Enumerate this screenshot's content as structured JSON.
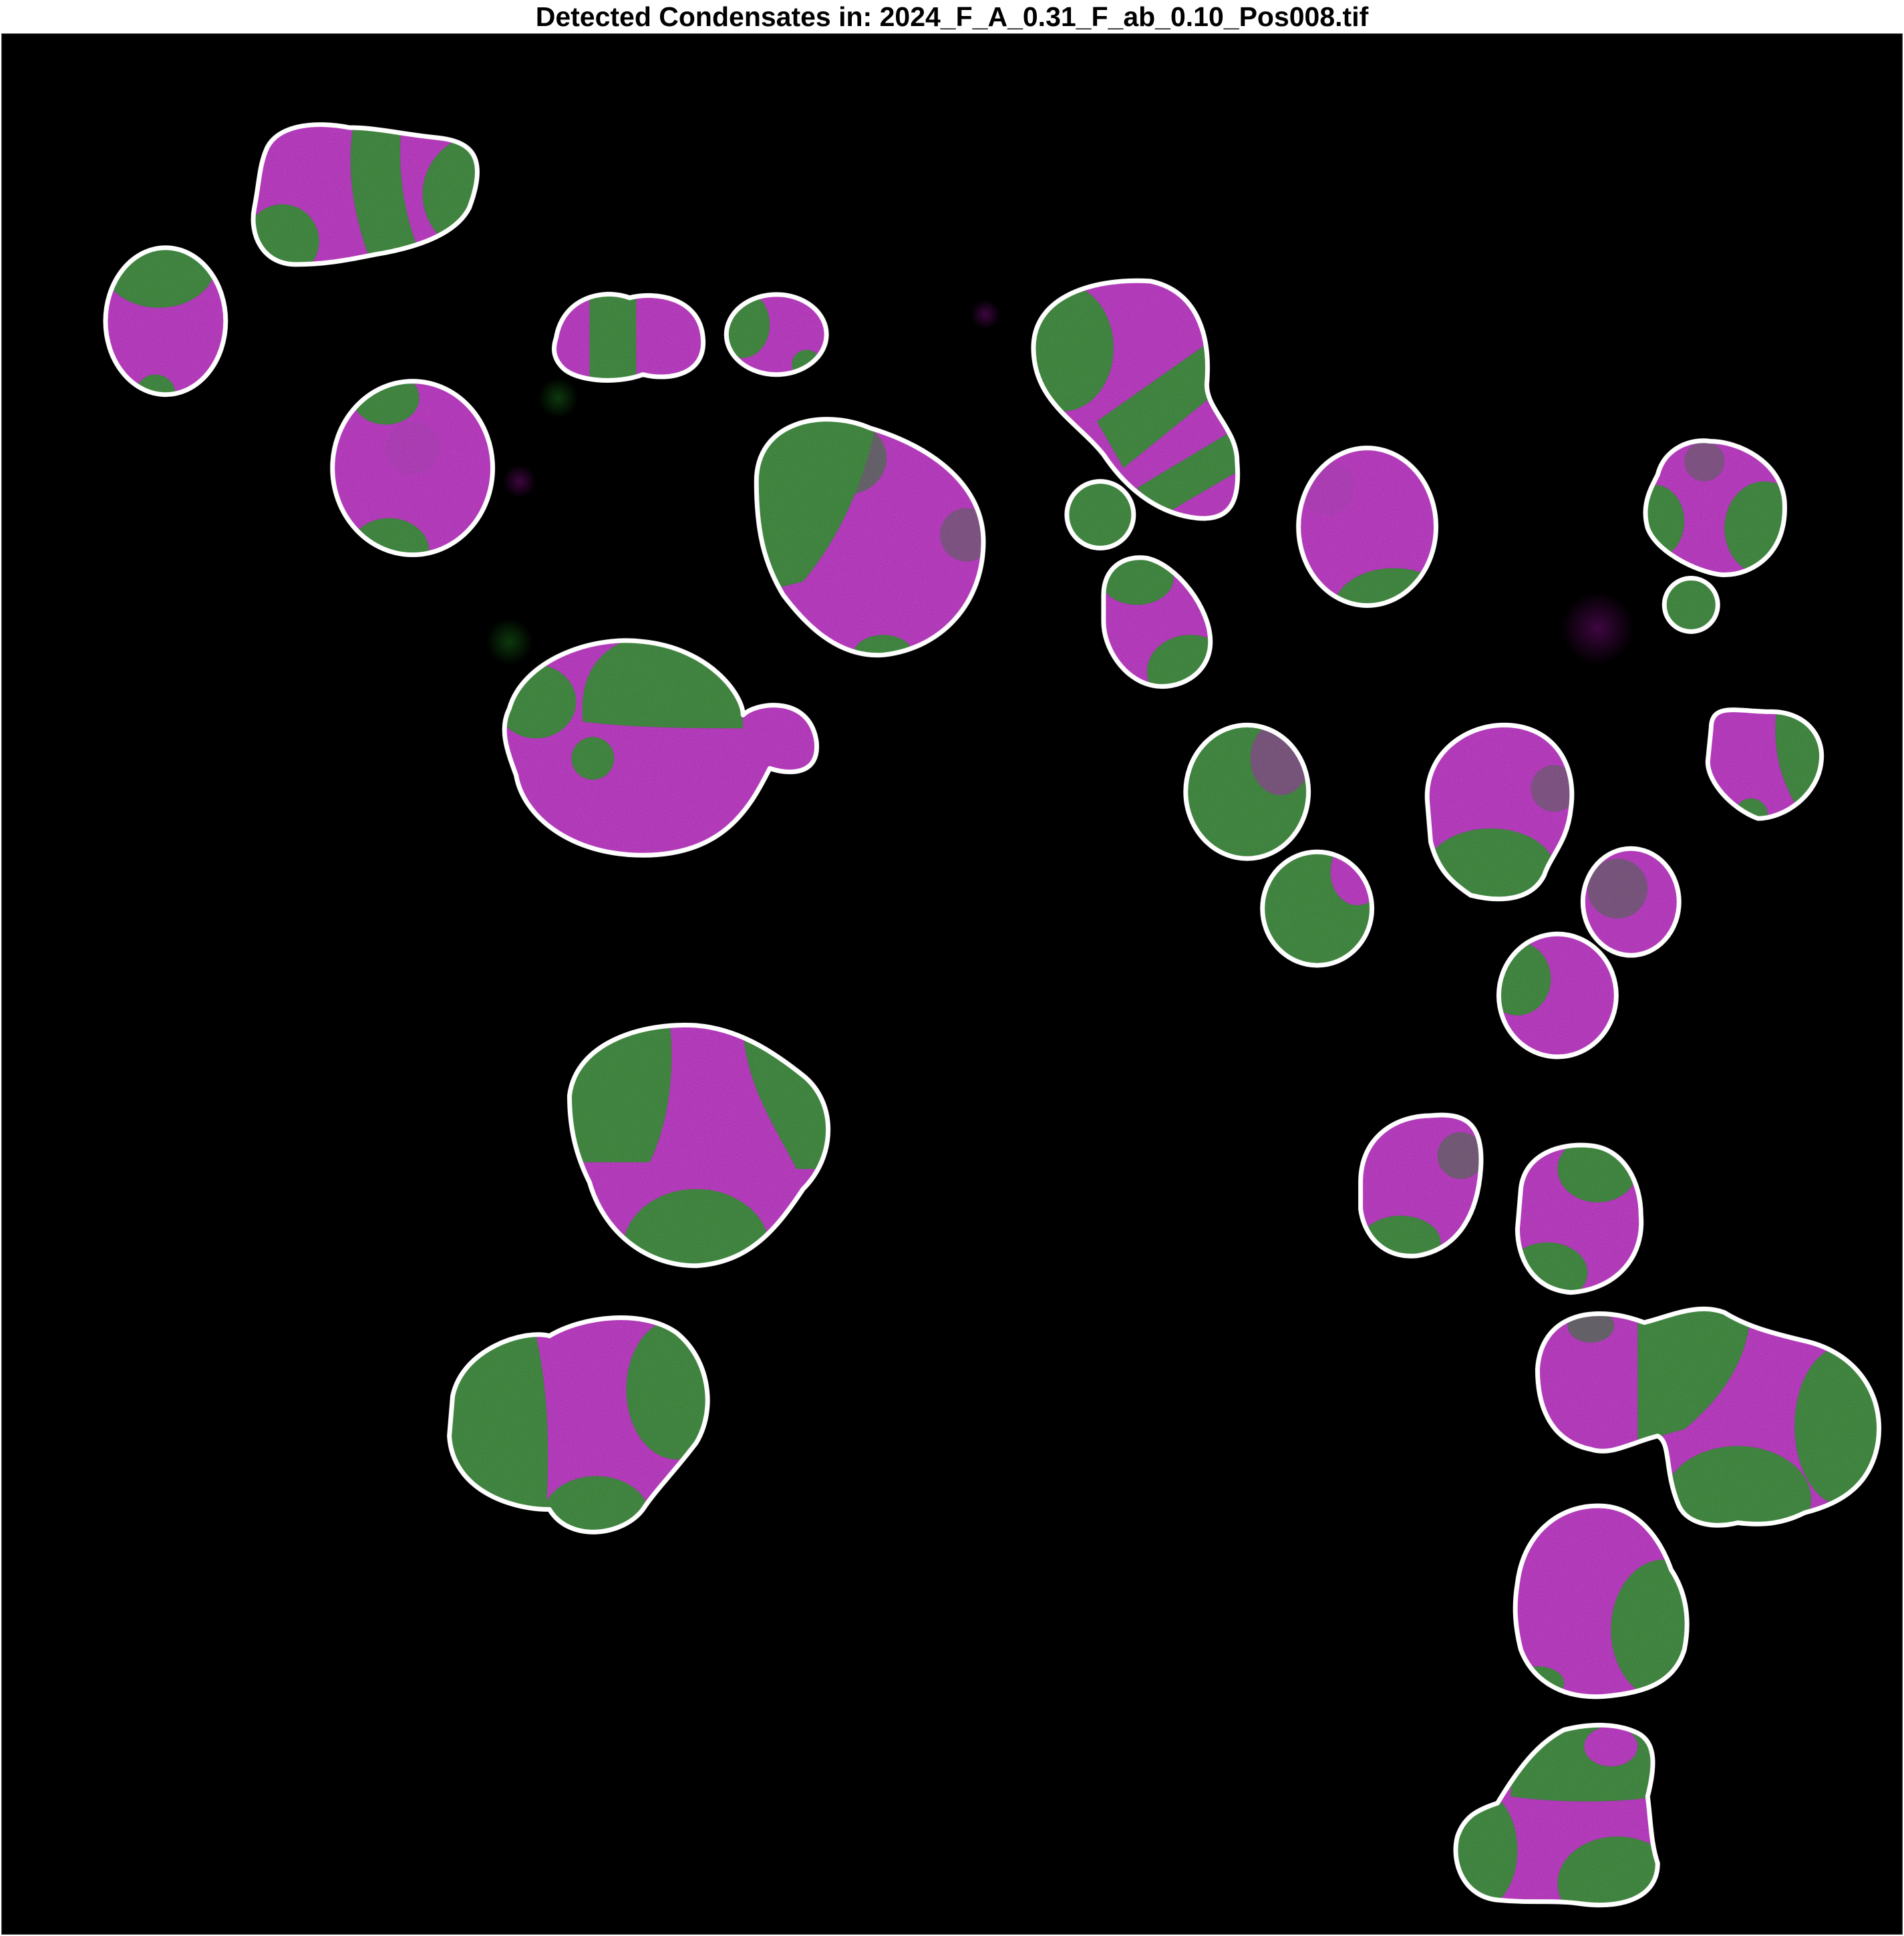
{
  "figure": {
    "title": "Detected Condensates in: 2024_F_A_0.31_F_ab_0.10_Pos008.tif"
  },
  "colors": {
    "background": "#000000",
    "magenta_phase": "#b011b8",
    "green_phase": "#1c7d1c",
    "outline": "#ffffff"
  }
}
